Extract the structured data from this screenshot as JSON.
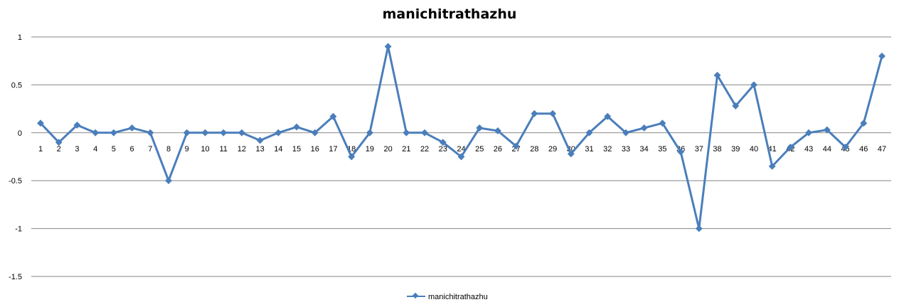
{
  "chart_data": {
    "type": "line",
    "title": "manichitrathazhu",
    "xlabel": "",
    "ylabel": "",
    "x": [
      1,
      2,
      3,
      4,
      5,
      6,
      7,
      8,
      9,
      10,
      11,
      12,
      13,
      14,
      15,
      16,
      17,
      18,
      19,
      20,
      21,
      22,
      23,
      24,
      25,
      26,
      27,
      28,
      29,
      30,
      31,
      32,
      33,
      34,
      35,
      36,
      37,
      38,
      39,
      40,
      41,
      42,
      43,
      44,
      45,
      46,
      47
    ],
    "yticks": [
      1,
      0.5,
      0,
      -0.5,
      -1,
      -1.5
    ],
    "ylim": [
      -1.5,
      1
    ],
    "grid": true,
    "legend": "bottom",
    "series": [
      {
        "name": "manichitrathazhu",
        "color": "#4A7EBB",
        "marker": "diamond",
        "values": [
          0.1,
          -0.1,
          0.08,
          0,
          0,
          0.05,
          0,
          -0.5,
          0,
          0,
          0,
          0,
          -0.08,
          0,
          0.06,
          0,
          0.17,
          -0.25,
          0,
          0.9,
          0,
          0,
          -0.1,
          -0.25,
          0.05,
          0.02,
          -0.14,
          0.2,
          0.2,
          -0.22,
          0,
          0.17,
          0,
          0.05,
          0.1,
          -0.2,
          -1,
          0.6,
          0.28,
          0.5,
          -0.35,
          -0.15,
          0,
          0.03,
          -0.15,
          0.1,
          0.8
        ]
      }
    ]
  }
}
